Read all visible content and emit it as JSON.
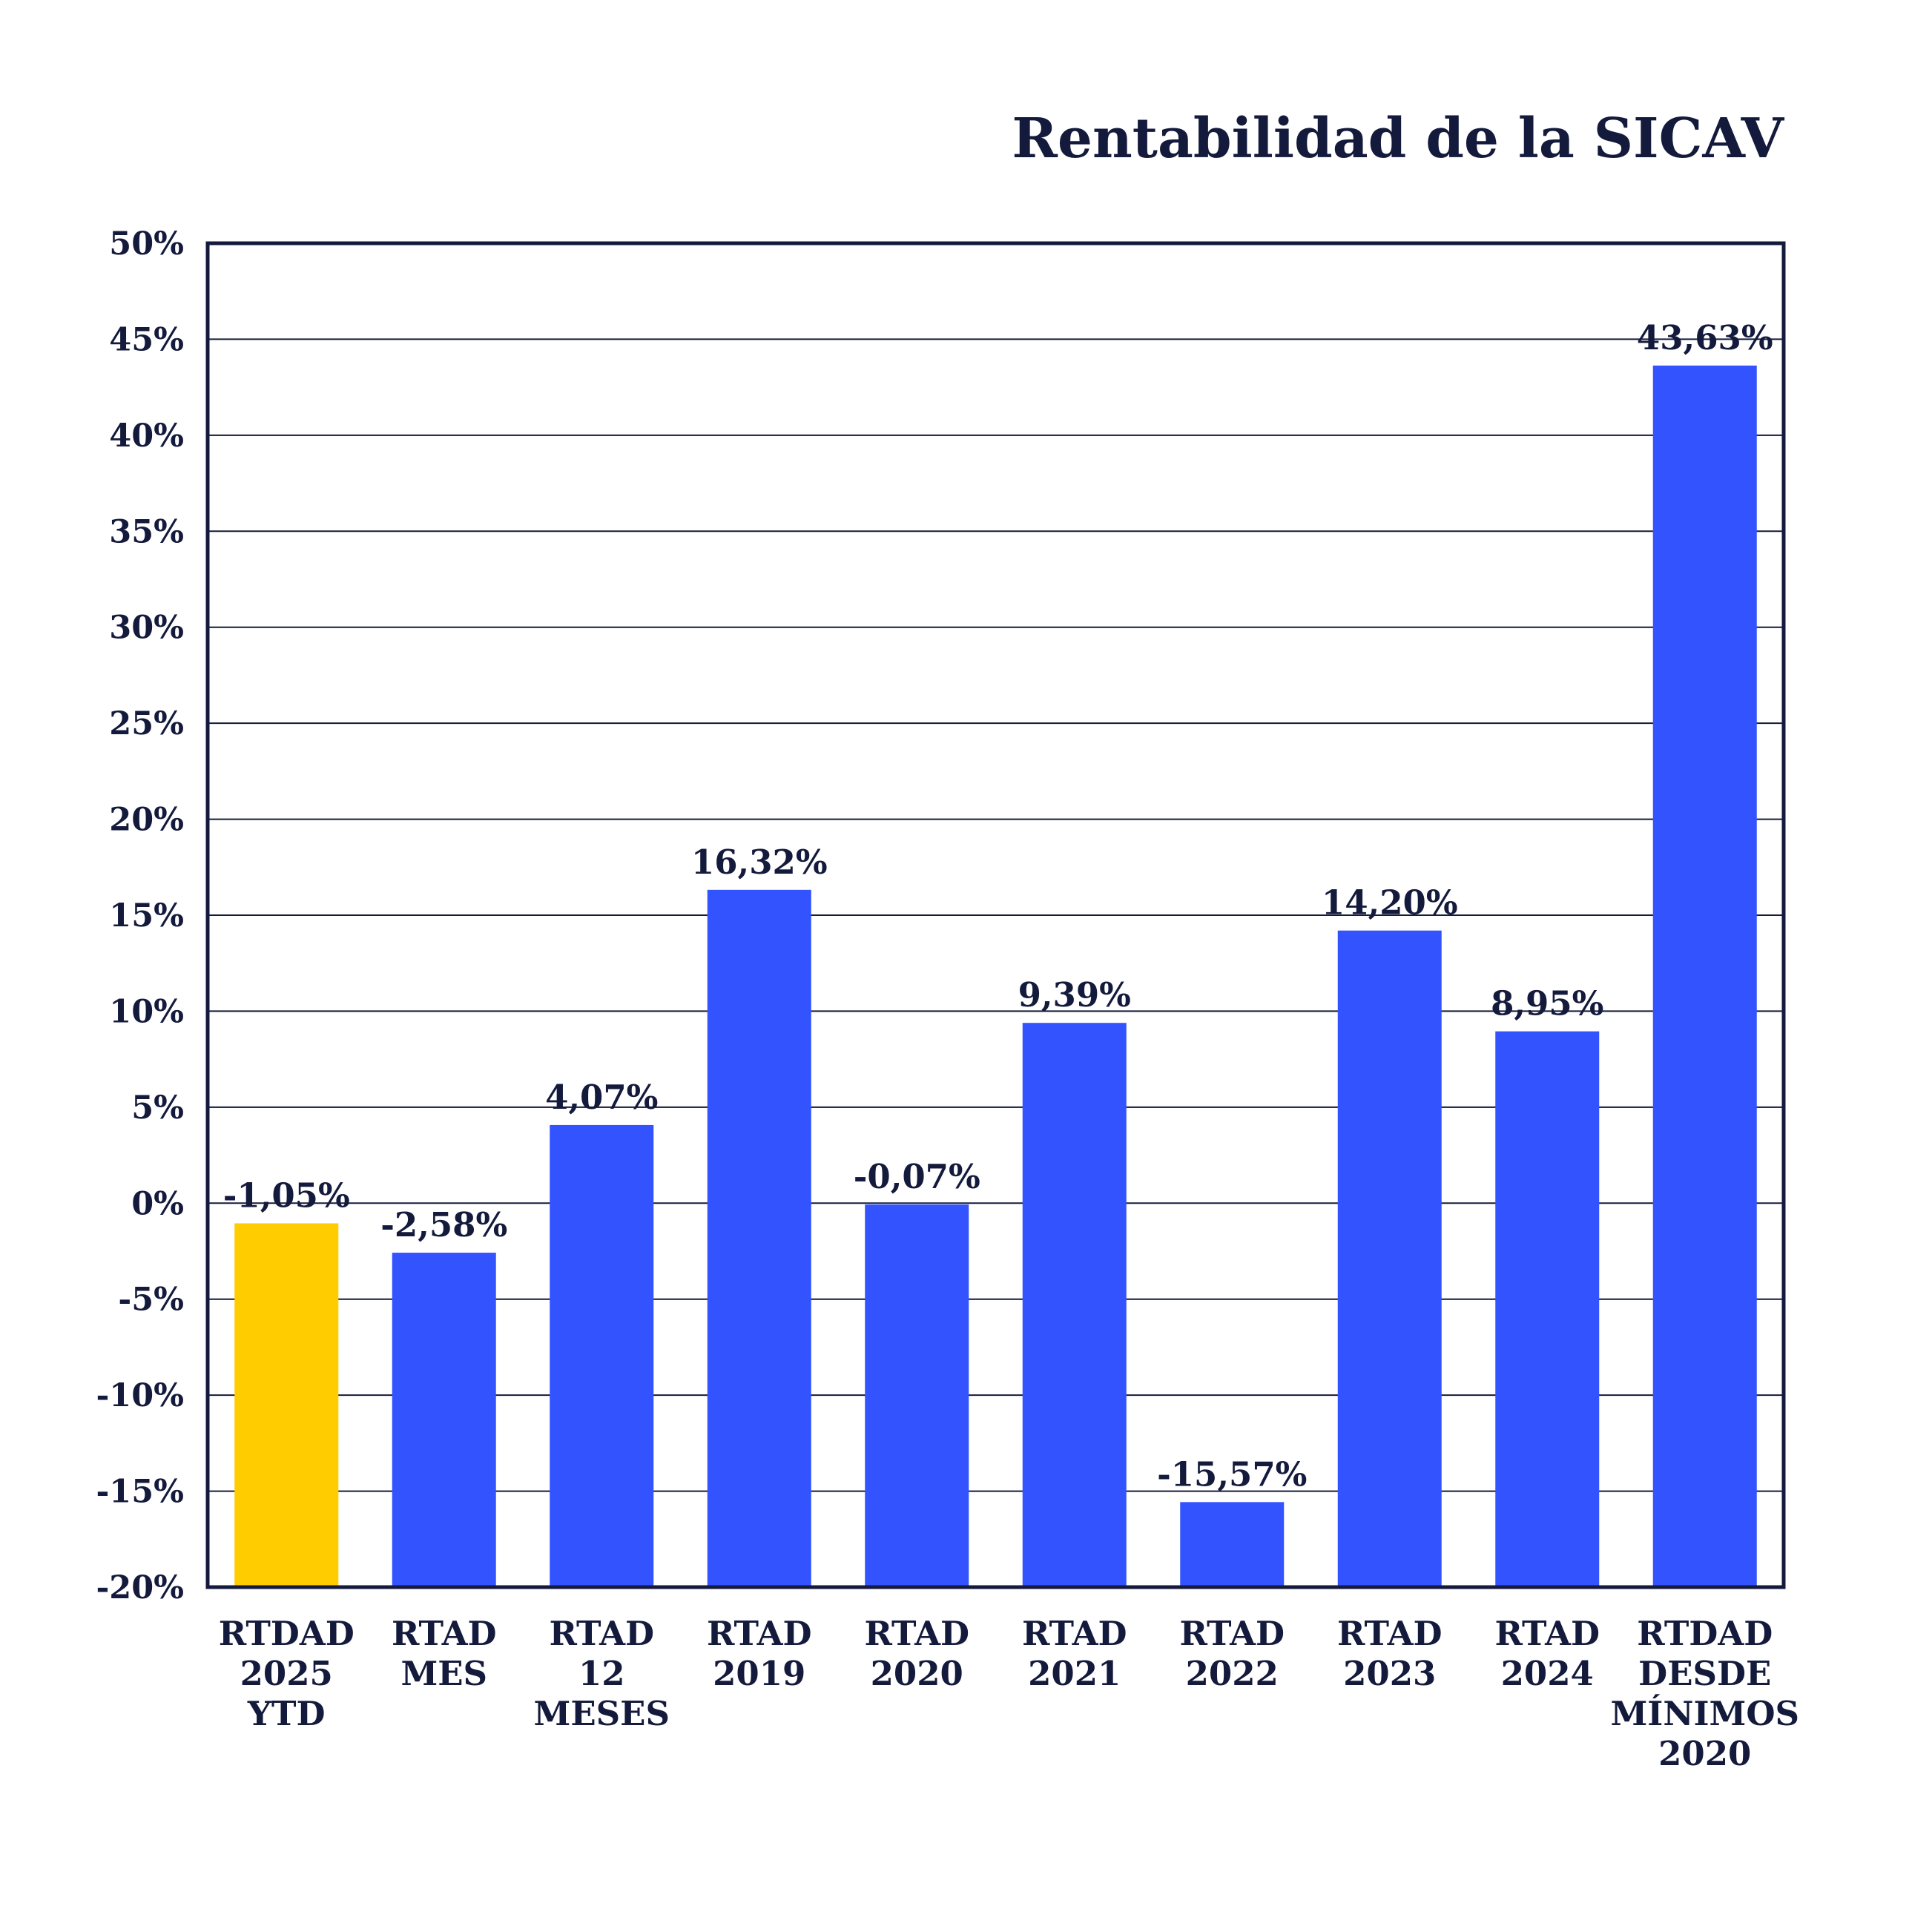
{
  "chart_data": {
    "type": "bar",
    "title": "Rentabilidad de la SICAV",
    "xlabel": "",
    "ylabel": "",
    "ylim": [
      -20,
      50
    ],
    "yticks": [
      50,
      45,
      40,
      35,
      30,
      25,
      20,
      15,
      10,
      5,
      0,
      -5,
      -10,
      -15,
      -20
    ],
    "ytick_labels": [
      "50%",
      "45%",
      "40%",
      "35%",
      "30%",
      "25%",
      "20%",
      "15%",
      "10%",
      "5%",
      "0%",
      "-5%",
      "-10%",
      "-15%",
      "-20%"
    ],
    "grid": true,
    "legend": "none",
    "categories": [
      [
        "RTDAD",
        "2025",
        "YTD"
      ],
      [
        "RTAD",
        "MES"
      ],
      [
        "RTAD",
        "12",
        "MESES"
      ],
      [
        "RTAD",
        "2019"
      ],
      [
        "RTAD",
        "2020"
      ],
      [
        "RTAD",
        "2021"
      ],
      [
        "RTAD",
        "2022"
      ],
      [
        "RTAD",
        "2023"
      ],
      [
        "RTAD",
        "2024"
      ],
      [
        "RTDAD",
        "DESDE",
        "MÍNIMOS",
        "2020"
      ]
    ],
    "values": [
      -1.05,
      -2.58,
      4.07,
      16.32,
      -0.07,
      9.39,
      -15.57,
      14.2,
      8.95,
      43.63
    ],
    "value_labels": [
      "-1,05%",
      "-2,58%",
      "4,07%",
      "16,32%",
      "-0,07%",
      "9,39%",
      "-15,57%",
      "14,20%",
      "8,95%",
      "43,63%"
    ],
    "colors": {
      "highlight": "#ffcc00",
      "bar": "#3353ff",
      "text": "#141a3c"
    },
    "highlight_index": 0
  }
}
